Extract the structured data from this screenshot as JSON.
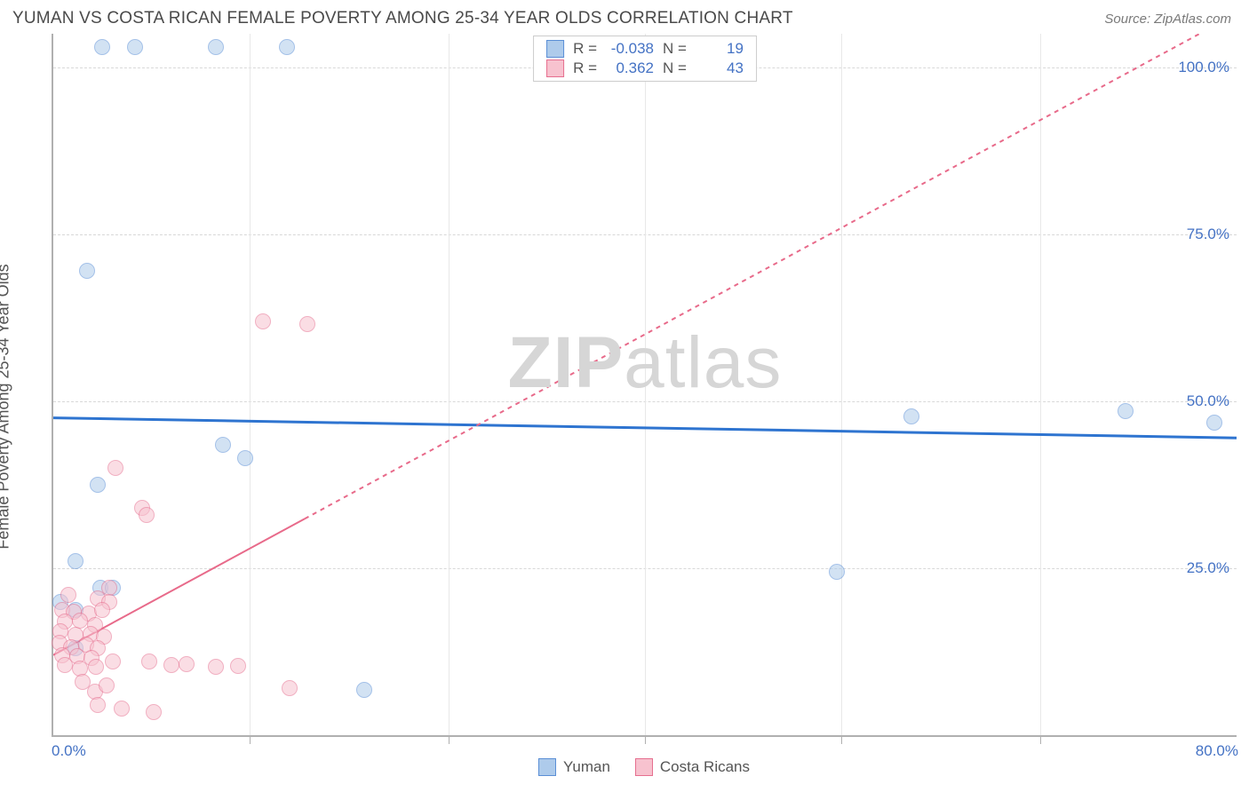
{
  "header": {
    "title": "YUMAN VS COSTA RICAN FEMALE POVERTY AMONG 25-34 YEAR OLDS CORRELATION CHART",
    "source_prefix": "Source:",
    "source_name": "ZipAtlas.com"
  },
  "watermark": {
    "bold": "ZIP",
    "light": "atlas"
  },
  "chart": {
    "type": "scatter",
    "y_label": "Female Poverty Among 25-34 Year Olds",
    "xlim": [
      0,
      80
    ],
    "ylim": [
      0,
      105
    ],
    "x_ticks": [
      0,
      80
    ],
    "x_tick_labels": [
      "0.0%",
      "80.0%"
    ],
    "x_minor_ticks": [
      13.3,
      26.7,
      40.0,
      53.3,
      66.7
    ],
    "y_gridlines": [
      25,
      50,
      75,
      100
    ],
    "y_tick_labels": [
      "25.0%",
      "50.0%",
      "75.0%",
      "100.0%"
    ],
    "background_color": "#ffffff",
    "grid_color": "#d8d8d8",
    "axis_color": "#b0b0b0",
    "marker_size": 18,
    "marker_opacity": 0.55,
    "series": [
      {
        "name": "Yuman",
        "color_fill": "#aecbeb",
        "color_stroke": "#5b8fd6",
        "R": "-0.038",
        "N": "19",
        "trend": {
          "y_at_x0": 47.5,
          "y_at_xmax": 44.5,
          "color": "#2e74d0",
          "width": 3,
          "dash": "none",
          "x_solid_max": 80
        },
        "points": [
          {
            "x": 3.3,
            "y": 103
          },
          {
            "x": 5.5,
            "y": 103
          },
          {
            "x": 11.0,
            "y": 103
          },
          {
            "x": 15.8,
            "y": 103
          },
          {
            "x": 2.3,
            "y": 69.5
          },
          {
            "x": 11.5,
            "y": 43.5
          },
          {
            "x": 13.0,
            "y": 41.5
          },
          {
            "x": 3.0,
            "y": 37.5
          },
          {
            "x": 1.5,
            "y": 26.0
          },
          {
            "x": 3.2,
            "y": 22.0
          },
          {
            "x": 4.0,
            "y": 22.0
          },
          {
            "x": 0.5,
            "y": 20.0
          },
          {
            "x": 1.5,
            "y": 18.7
          },
          {
            "x": 1.5,
            "y": 13.0
          },
          {
            "x": 21.0,
            "y": 6.8
          },
          {
            "x": 53.0,
            "y": 24.5
          },
          {
            "x": 58.0,
            "y": 47.7
          },
          {
            "x": 72.5,
            "y": 48.5
          },
          {
            "x": 78.5,
            "y": 46.8
          }
        ]
      },
      {
        "name": "Costa Ricans",
        "color_fill": "#f7c2cf",
        "color_stroke": "#e66f8f",
        "R": "0.362",
        "N": "43",
        "trend": {
          "y_at_x0": 12.0,
          "y_at_xmax": 108.0,
          "color": "#e86a8a",
          "width": 2,
          "dash": "5,5",
          "x_solid_max": 17
        },
        "points": [
          {
            "x": 14.2,
            "y": 62.0
          },
          {
            "x": 17.2,
            "y": 61.5
          },
          {
            "x": 4.2,
            "y": 40.0
          },
          {
            "x": 6.0,
            "y": 34.0
          },
          {
            "x": 6.3,
            "y": 33.0
          },
          {
            "x": 3.8,
            "y": 22.0
          },
          {
            "x": 1.0,
            "y": 21.0
          },
          {
            "x": 3.0,
            "y": 20.5
          },
          {
            "x": 3.8,
            "y": 20.0
          },
          {
            "x": 0.6,
            "y": 18.8
          },
          {
            "x": 1.4,
            "y": 18.5
          },
          {
            "x": 2.4,
            "y": 18.2
          },
          {
            "x": 3.3,
            "y": 18.8
          },
          {
            "x": 0.8,
            "y": 17.0
          },
          {
            "x": 1.8,
            "y": 17.2
          },
          {
            "x": 2.8,
            "y": 16.5
          },
          {
            "x": 0.5,
            "y": 15.5
          },
          {
            "x": 1.5,
            "y": 15.0
          },
          {
            "x": 2.5,
            "y": 15.2
          },
          {
            "x": 3.4,
            "y": 14.8
          },
          {
            "x": 0.4,
            "y": 13.8
          },
          {
            "x": 1.2,
            "y": 13.2
          },
          {
            "x": 2.2,
            "y": 13.5
          },
          {
            "x": 3.0,
            "y": 13.0
          },
          {
            "x": 0.6,
            "y": 12.0
          },
          {
            "x": 1.6,
            "y": 11.8
          },
          {
            "x": 2.6,
            "y": 11.5
          },
          {
            "x": 0.8,
            "y": 10.5
          },
          {
            "x": 1.8,
            "y": 10.0
          },
          {
            "x": 2.9,
            "y": 10.2
          },
          {
            "x": 4.0,
            "y": 11.0
          },
          {
            "x": 6.5,
            "y": 11.0
          },
          {
            "x": 8.0,
            "y": 10.5
          },
          {
            "x": 9.0,
            "y": 10.7
          },
          {
            "x": 11.0,
            "y": 10.2
          },
          {
            "x": 12.5,
            "y": 10.4
          },
          {
            "x": 2.0,
            "y": 8.0
          },
          {
            "x": 2.8,
            "y": 6.5
          },
          {
            "x": 3.6,
            "y": 7.5
          },
          {
            "x": 16.0,
            "y": 7.0
          },
          {
            "x": 3.0,
            "y": 4.5
          },
          {
            "x": 4.6,
            "y": 4.0
          },
          {
            "x": 6.8,
            "y": 3.5
          }
        ]
      }
    ],
    "bottom_legend": [
      "Yuman",
      "Costa Ricans"
    ]
  }
}
